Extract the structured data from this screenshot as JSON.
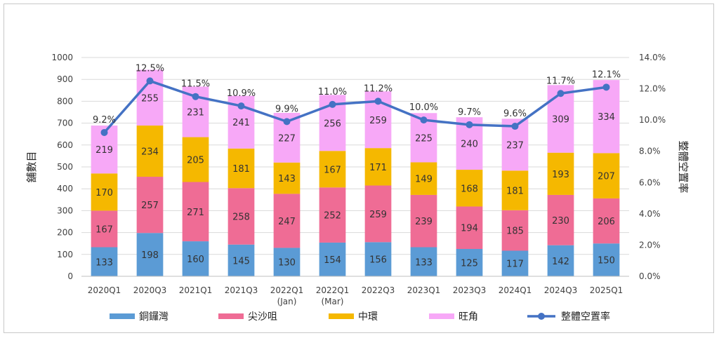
{
  "chart_data": {
    "type": "bar",
    "stacked": true,
    "title": "",
    "categories": [
      "2020Q1",
      "2020Q3",
      "2021Q1",
      "2021Q3",
      "2022Q1\n(Jan)",
      "2022Q1\n(Mar)",
      "2022Q3",
      "2023Q1",
      "2023Q3",
      "2024Q1",
      "2024Q3",
      "2025Q1"
    ],
    "series": [
      {
        "name": "銅鑼灣",
        "type": "bar",
        "color": "#5B9BD5",
        "values": [
          133,
          198,
          160,
          145,
          130,
          154,
          156,
          133,
          125,
          117,
          142,
          150
        ]
      },
      {
        "name": "尖沙咀",
        "type": "bar",
        "color": "#EF6C95",
        "values": [
          167,
          257,
          271,
          258,
          247,
          252,
          259,
          239,
          194,
          185,
          230,
          206
        ]
      },
      {
        "name": "中環",
        "type": "bar",
        "color": "#F5B800",
        "values": [
          170,
          234,
          205,
          181,
          143,
          167,
          171,
          149,
          168,
          181,
          193,
          207
        ]
      },
      {
        "name": "旺角",
        "type": "bar",
        "color": "#F7A8F7",
        "values": [
          219,
          255,
          231,
          241,
          227,
          256,
          259,
          225,
          240,
          237,
          309,
          334
        ]
      }
    ],
    "line_series": {
      "name": "整體空置率",
      "axis": "right",
      "color": "#4472C4",
      "values": [
        9.2,
        12.5,
        11.5,
        10.9,
        9.9,
        11.0,
        11.2,
        10.0,
        9.7,
        9.6,
        11.7,
        12.1
      ],
      "labels": [
        "9.2%",
        "12.5%",
        "11.5%",
        "10.9%",
        "9.9%",
        "11.0%",
        "11.2%",
        "10.0%",
        "9.7%",
        "9.6%",
        "11.7%",
        "12.1%"
      ]
    },
    "ylabel": "舖數目",
    "y2label": "整體空置率",
    "ylim": [
      0,
      1000
    ],
    "yticks": [
      "0",
      "100",
      "200",
      "300",
      "400",
      "500",
      "600",
      "700",
      "800",
      "900",
      "1000"
    ],
    "y2lim": [
      0,
      14
    ],
    "y2ticks": [
      "0.0%",
      "2.0%",
      "4.0%",
      "6.0%",
      "8.0%",
      "10.0%",
      "12.0%",
      "14.0%"
    ],
    "grid": true,
    "legend_position": "bottom"
  }
}
